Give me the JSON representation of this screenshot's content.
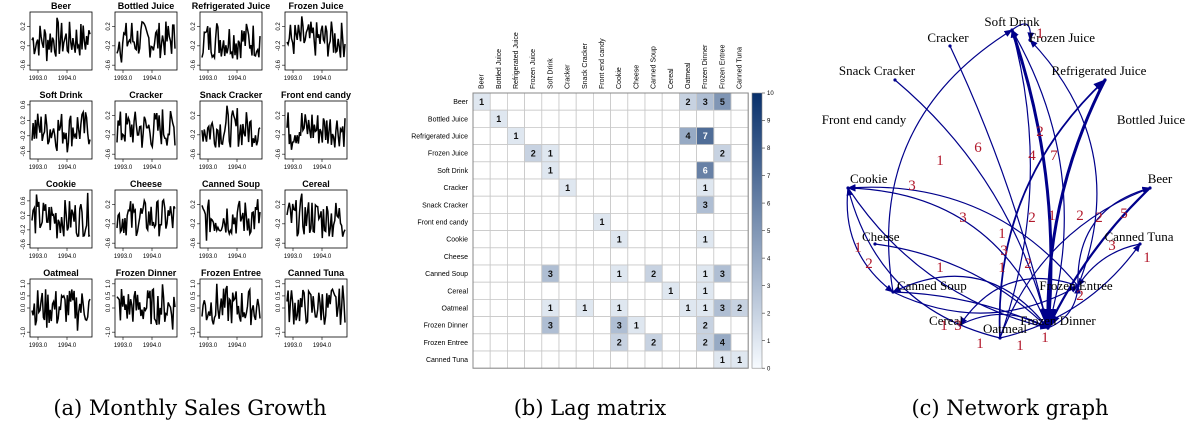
{
  "captions": [
    "(a) Monthly Sales Growth",
    "(b) Lag matrix",
    "(c) Network graph"
  ],
  "chart_data": [
    {
      "type": "line",
      "panel": "a",
      "caption": "(a) Monthly Sales Growth",
      "x_ticks": [
        "1993.0",
        "1994.0"
      ],
      "panels": [
        {
          "title": "Beer",
          "ylim": [
            -0.7,
            0.5
          ],
          "yticks": [
            "-0.6",
            "-0.2",
            "0.2"
          ]
        },
        {
          "title": "Bottled Juice",
          "ylim": [
            -0.7,
            0.5
          ],
          "yticks": [
            "-0.6",
            "-0.2",
            "0.2"
          ]
        },
        {
          "title": "Refrigerated Juice",
          "ylim": [
            -0.7,
            0.5
          ],
          "yticks": [
            "-0.6",
            "-0.2",
            "0.2"
          ]
        },
        {
          "title": "Frozen Juice",
          "ylim": [
            -0.7,
            0.5
          ],
          "yticks": [
            "-0.6",
            "-0.2",
            "0.2"
          ]
        },
        {
          "title": "Soft Drink",
          "ylim": [
            -0.8,
            0.7
          ],
          "yticks": [
            "-0.6",
            "-0.2",
            "0.2",
            "0.6"
          ]
        },
        {
          "title": "Cracker",
          "ylim": [
            -0.7,
            0.5
          ],
          "yticks": [
            "-0.6",
            "-0.2",
            "0.2"
          ]
        },
        {
          "title": "Snack Cracker",
          "ylim": [
            -0.7,
            0.5
          ],
          "yticks": [
            "-0.6",
            "-0.2",
            "0.2"
          ]
        },
        {
          "title": "Front end candy",
          "ylim": [
            -0.7,
            0.5
          ],
          "yticks": [
            "-0.6",
            "-0.2",
            "0.2"
          ]
        },
        {
          "title": "Cookie",
          "ylim": [
            -0.7,
            0.9
          ],
          "yticks": [
            "-0.6",
            "-0.2",
            "0.2",
            "0.6"
          ]
        },
        {
          "title": "Cheese",
          "ylim": [
            -0.7,
            0.5
          ],
          "yticks": [
            "-0.6",
            "-0.2",
            "0.2"
          ]
        },
        {
          "title": "Canned Soup",
          "ylim": [
            -0.7,
            0.5
          ],
          "yticks": [
            "-0.6",
            "-0.2",
            "0.2"
          ]
        },
        {
          "title": "Cereal",
          "ylim": [
            -0.7,
            0.5
          ],
          "yticks": [
            "-0.6",
            "-0.2",
            "0.2"
          ]
        },
        {
          "title": "Oatmeal",
          "ylim": [
            -1.2,
            1.2
          ],
          "yticks": [
            "-1.0",
            "0.0",
            "0.5",
            "1.0"
          ]
        },
        {
          "title": "Frozen Dinner",
          "ylim": [
            -1.2,
            1.2
          ],
          "yticks": [
            "-1.0",
            "0.0",
            "0.5",
            "1.0"
          ]
        },
        {
          "title": "Frozen Entree",
          "ylim": [
            -1.2,
            1.2
          ],
          "yticks": [
            "-1.0",
            "0.0",
            "0.5",
            "1.0"
          ]
        },
        {
          "title": "Canned Tuna",
          "ylim": [
            -1.2,
            1.2
          ],
          "yticks": [
            "-1.0",
            "0.0",
            "0.5",
            "1.0"
          ]
        }
      ]
    },
    {
      "type": "heatmap",
      "panel": "b",
      "caption": "(b) Lag matrix",
      "labels": [
        "Beer",
        "Bottled Juice",
        "Refrigerated Juice",
        "Frozen Juice",
        "Soft Drink",
        "Cracker",
        "Snack Cracker",
        "Front end candy",
        "Cookie",
        "Cheese",
        "Canned Soup",
        "Cereal",
        "Oatmeal",
        "Frozen Dinner",
        "Frozen Entree",
        "Canned Tuna"
      ],
      "colorbar": {
        "min": 0,
        "max": 10,
        "ticks": [
          "0",
          "1",
          "2",
          "3",
          "4",
          "5",
          "6",
          "7",
          "8",
          "9",
          "10"
        ]
      },
      "cells": [
        {
          "r": 0,
          "c": 0,
          "v": 1
        },
        {
          "r": 0,
          "c": 12,
          "v": 2
        },
        {
          "r": 0,
          "c": 13,
          "v": 3
        },
        {
          "r": 0,
          "c": 14,
          "v": 5
        },
        {
          "r": 1,
          "c": 1,
          "v": 1
        },
        {
          "r": 2,
          "c": 2,
          "v": 1
        },
        {
          "r": 2,
          "c": 12,
          "v": 4
        },
        {
          "r": 2,
          "c": 13,
          "v": 7
        },
        {
          "r": 3,
          "c": 3,
          "v": 2
        },
        {
          "r": 3,
          "c": 4,
          "v": 1
        },
        {
          "r": 3,
          "c": 14,
          "v": 2
        },
        {
          "r": 4,
          "c": 4,
          "v": 1
        },
        {
          "r": 4,
          "c": 13,
          "v": 6
        },
        {
          "r": 5,
          "c": 5,
          "v": 1
        },
        {
          "r": 5,
          "c": 13,
          "v": 1
        },
        {
          "r": 6,
          "c": 13,
          "v": 3
        },
        {
          "r": 7,
          "c": 7,
          "v": 1
        },
        {
          "r": 8,
          "c": 8,
          "v": 1
        },
        {
          "r": 8,
          "c": 13,
          "v": 1
        },
        {
          "r": 10,
          "c": 4,
          "v": 3
        },
        {
          "r": 10,
          "c": 8,
          "v": 1
        },
        {
          "r": 10,
          "c": 10,
          "v": 2
        },
        {
          "r": 10,
          "c": 13,
          "v": 1
        },
        {
          "r": 10,
          "c": 14,
          "v": 3
        },
        {
          "r": 11,
          "c": 11,
          "v": 1
        },
        {
          "r": 11,
          "c": 13,
          "v": 1
        },
        {
          "r": 12,
          "c": 4,
          "v": 1
        },
        {
          "r": 12,
          "c": 6,
          "v": 1
        },
        {
          "r": 12,
          "c": 8,
          "v": 1
        },
        {
          "r": 12,
          "c": 12,
          "v": 1
        },
        {
          "r": 12,
          "c": 13,
          "v": 1
        },
        {
          "r": 12,
          "c": 14,
          "v": 3
        },
        {
          "r": 12,
          "c": 15,
          "v": 2
        },
        {
          "r": 13,
          "c": 4,
          "v": 3
        },
        {
          "r": 13,
          "c": 8,
          "v": 3
        },
        {
          "r": 13,
          "c": 9,
          "v": 1
        },
        {
          "r": 13,
          "c": 13,
          "v": 2
        },
        {
          "r": 14,
          "c": 8,
          "v": 2
        },
        {
          "r": 14,
          "c": 10,
          "v": 2
        },
        {
          "r": 14,
          "c": 13,
          "v": 2
        },
        {
          "r": 14,
          "c": 14,
          "v": 4
        },
        {
          "r": 15,
          "c": 14,
          "v": 1
        },
        {
          "r": 15,
          "c": 15,
          "v": 1
        }
      ]
    },
    {
      "type": "network",
      "panel": "c",
      "caption": "(c) Network graph",
      "nodes": [
        "Soft Drink",
        "Cracker",
        "Frozen Juice",
        "Snack Cracker",
        "Refrigerated Juice",
        "Front end candy",
        "Bottled Juice",
        "Cookie",
        "Beer",
        "Cheese",
        "Canned Tuna",
        "Canned Soup",
        "Frozen Entree",
        "Cereal",
        "Oatmeal",
        "Frozen Dinner"
      ],
      "edge_labels": [
        "1",
        "6",
        "2",
        "4",
        "7",
        "1",
        "3",
        "3",
        "2",
        "1",
        "2",
        "2",
        "3",
        "5",
        "1",
        "1",
        "2",
        "1",
        "1",
        "1",
        "2",
        "2",
        "1",
        "3",
        "1",
        "1",
        "1",
        "3"
      ]
    }
  ]
}
